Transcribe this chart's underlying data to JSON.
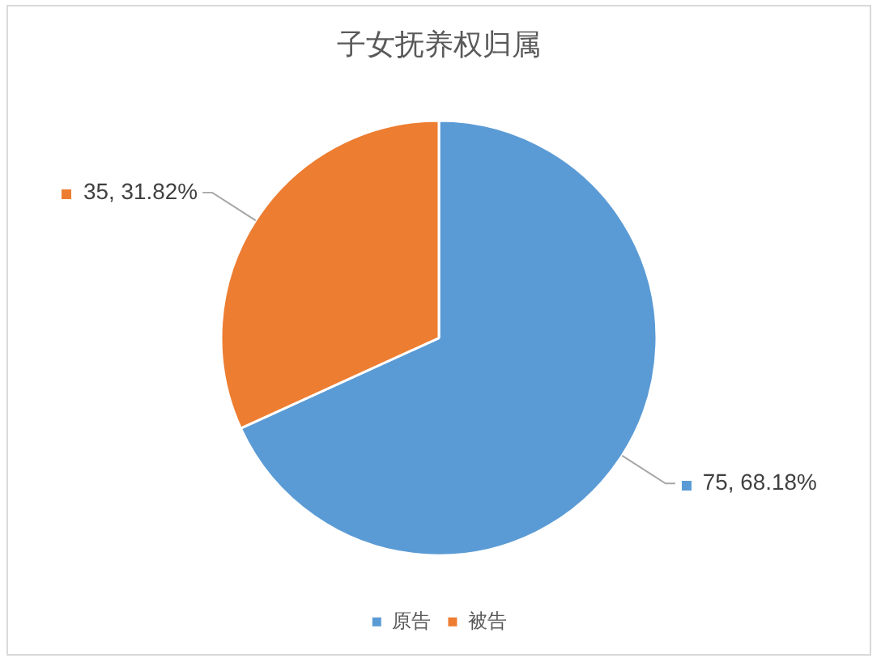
{
  "chart_data": {
    "type": "pie",
    "title": "子女抚养权归属",
    "categories": [
      "原告",
      "被告"
    ],
    "values": [
      75,
      35
    ],
    "colors": [
      "#5b9bd5",
      "#ed7d31"
    ],
    "value_labels": [
      "75, 68.18%",
      "35, 31.82%"
    ],
    "legend": "bottom"
  }
}
